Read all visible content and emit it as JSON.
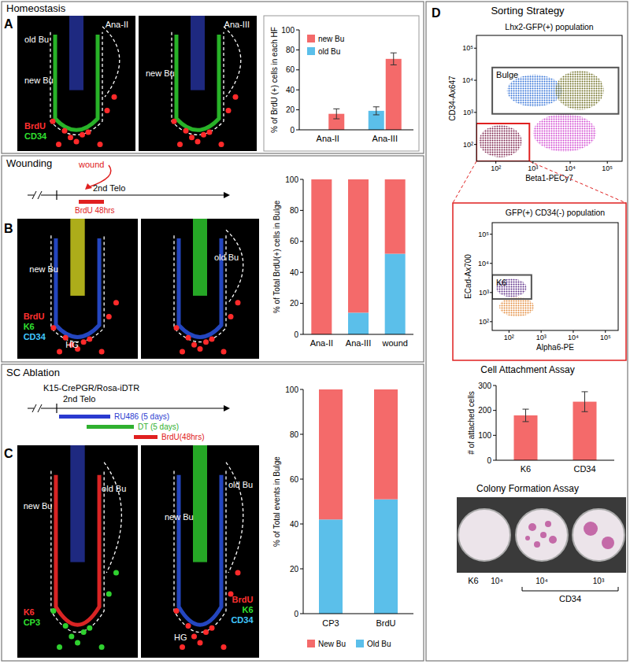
{
  "chart_data": [
    {
      "type": "bar",
      "categories": [
        "Ana-II",
        "Ana-III"
      ],
      "series": [
        {
          "name": "old Bu",
          "color": "#5bbfea",
          "values": [
            0,
            19
          ],
          "errors": [
            null,
            4
          ]
        },
        {
          "name": "new Bu",
          "color": "#f46a6a",
          "values": [
            16,
            71
          ],
          "errors": [
            5,
            6
          ]
        }
      ],
      "ylim": [
        0,
        100
      ],
      "yticks": [
        0,
        20,
        40,
        60,
        80,
        100
      ],
      "y_label": "% of BrdU (+) cells in each HF",
      "legend": "top-left"
    },
    {
      "type": "bar",
      "stacked": true,
      "categories": [
        "Ana-II",
        "Ana-III",
        "wound"
      ],
      "series": [
        {
          "color": "#5bbfea",
          "values": [
            0,
            14,
            52
          ]
        },
        {
          "color": "#f46a6a",
          "values": [
            100,
            86,
            48
          ]
        }
      ],
      "ylim": [
        0,
        100
      ],
      "yticks": [
        0,
        20,
        40,
        60,
        80,
        100
      ],
      "y_label": "% of Total BrdU(+) cells in Bulge"
    },
    {
      "type": "bar",
      "stacked": true,
      "categories": [
        "CP3",
        "BrdU"
      ],
      "series": [
        {
          "name": "Old Bu",
          "color": "#5bbfea",
          "values": [
            42,
            51
          ]
        },
        {
          "name": "New Bu",
          "color": "#f46a6a",
          "values": [
            58,
            49
          ]
        }
      ],
      "ylim": [
        0,
        100
      ],
      "yticks": [
        0,
        20,
        40,
        60,
        80,
        100
      ],
      "y_label": "% of Total events in Bulge",
      "legend": "bottom"
    },
    {
      "type": "bar",
      "title": "Cell Attachment Assay",
      "categories": [
        "K6",
        "CD34"
      ],
      "values": [
        180,
        235
      ],
      "errors": [
        25,
        40
      ],
      "color": "#f46a6a",
      "ylim": [
        0,
        300
      ],
      "yticks": [
        0,
        100,
        200,
        300
      ],
      "y_label": "# of attached cells"
    },
    {
      "type": "flow",
      "log": true,
      "title": "Lhx2-GFP(+) population",
      "x_label": "Beta1-PECy7",
      "y_label": "CD34-Ax647",
      "xlim": [
        30,
        250000
      ],
      "ylim": [
        30,
        250000
      ],
      "xticks": [
        {
          "value": 100,
          "label": "10²"
        },
        {
          "value": 1000,
          "label": "10³"
        },
        {
          "value": 10000,
          "label": "10⁴"
        },
        {
          "value": 100000,
          "label": "10⁵"
        }
      ],
      "yticks": [
        {
          "value": 100,
          "label": "10²"
        },
        {
          "value": 1000,
          "label": "10³"
        },
        {
          "value": 10000,
          "label": "10⁴"
        },
        {
          "value": 100000,
          "label": "10⁵"
        }
      ],
      "clusters": [
        {
          "color": "#7a1f4a",
          "x_range": [
            35,
            500
          ],
          "y_range": [
            40,
            400
          ]
        },
        {
          "color": "#d046d0",
          "x_range": [
            1000,
            50000
          ],
          "y_range": [
            60,
            900
          ]
        },
        {
          "color": "#2f6fd6",
          "x_range": [
            200,
            6000
          ],
          "y_range": [
            1500,
            15000
          ]
        },
        {
          "color": "#6b6b1e",
          "x_range": [
            4000,
            80000
          ],
          "y_range": [
            1200,
            20000
          ]
        }
      ],
      "gates": [
        {
          "label": "Bulge",
          "color": "#555555",
          "x_range": [
            80,
            200000
          ],
          "y_range": [
            900,
            25000
          ]
        },
        {
          "color": "#e02020",
          "x_range": [
            30,
            800
          ],
          "y_range": [
            30,
            450
          ]
        }
      ]
    },
    {
      "type": "flow",
      "log": true,
      "title": "GFP(+) CD34(-) population",
      "x_label": "Alpha6-PE",
      "y_label": "ECad-Ax700",
      "xlim": [
        30,
        250000
      ],
      "ylim": [
        50,
        250000
      ],
      "xticks": [
        {
          "value": 100,
          "label": "10²"
        },
        {
          "value": 1000,
          "label": "10³"
        },
        {
          "value": 10000,
          "label": "10⁴"
        },
        {
          "value": 100000,
          "label": "10⁵"
        }
      ],
      "yticks": [
        {
          "value": 100,
          "label": "10²"
        },
        {
          "value": 1000,
          "label": "10³"
        },
        {
          "value": 10000,
          "label": "10⁴"
        },
        {
          "value": 100000,
          "label": "10⁵"
        }
      ],
      "clusters": [
        {
          "color": "#e38a3a",
          "x_range": [
            50,
            600
          ],
          "y_range": [
            150,
            700
          ]
        },
        {
          "color": "#5b2a86",
          "x_range": [
            40,
            350
          ],
          "y_range": [
            700,
            3000
          ]
        }
      ],
      "gates": [
        {
          "label": "K6",
          "color": "#555555",
          "x_range": [
            30,
            500
          ],
          "y_range": [
            600,
            4000
          ]
        }
      ]
    }
  ],
  "panels": [
    {
      "letter": "A",
      "title": "Homeostasis",
      "images": [
        {
          "labels": [
            "Ana-II",
            "old Bu",
            "new Bu"
          ],
          "channels": [
            {
              "text": "BrdU",
              "color": "#ff3030"
            },
            {
              "text": "CD34",
              "color": "#30e030"
            }
          ]
        },
        {
          "labels": [
            "Ana-III",
            "new Bu"
          ],
          "channels": []
        }
      ]
    },
    {
      "letter": "B",
      "title": "Wounding",
      "timeline": [
        "wound",
        "2nd Telo",
        "BrdU 48hrs"
      ],
      "images": [
        {
          "labels": [
            "new Bu",
            "HG"
          ],
          "channels": [
            {
              "text": "BrdU",
              "color": "#ff3030"
            },
            {
              "text": "K6",
              "color": "#30e030"
            },
            {
              "text": "CD34",
              "color": "#40c8ff"
            }
          ]
        },
        {
          "labels": [
            "old Bu"
          ],
          "channels": []
        }
      ]
    },
    {
      "letter": "C",
      "title": "SC Ablation",
      "timeline": [
        "K15-CrePGR/Rosa-iDTR",
        "2nd Telo",
        "RU486 (5 days)",
        "DT (5 days)",
        "BrdU(48hrs)"
      ],
      "images": [
        {
          "labels": [
            "new Bu",
            "old Bu"
          ],
          "channels": [
            {
              "text": "K6",
              "color": "#ff3030"
            },
            {
              "text": "CP3",
              "color": "#30e030"
            }
          ]
        },
        {
          "labels": [
            "new Bu",
            "old Bu",
            "HG"
          ],
          "channels": [
            {
              "text": "BrdU",
              "color": "#ff3030"
            },
            {
              "text": "K6",
              "color": "#30e030"
            },
            {
              "text": "CD34",
              "color": "#40c8ff"
            }
          ]
        }
      ]
    },
    {
      "letter": "D",
      "title": "Sorting Strategy",
      "colony_title": "Colony Formation Assay",
      "colony": {
        "plates": [
          "10⁴",
          "10⁴",
          "10³"
        ],
        "groups": [
          "K6",
          "CD34"
        ]
      }
    }
  ]
}
